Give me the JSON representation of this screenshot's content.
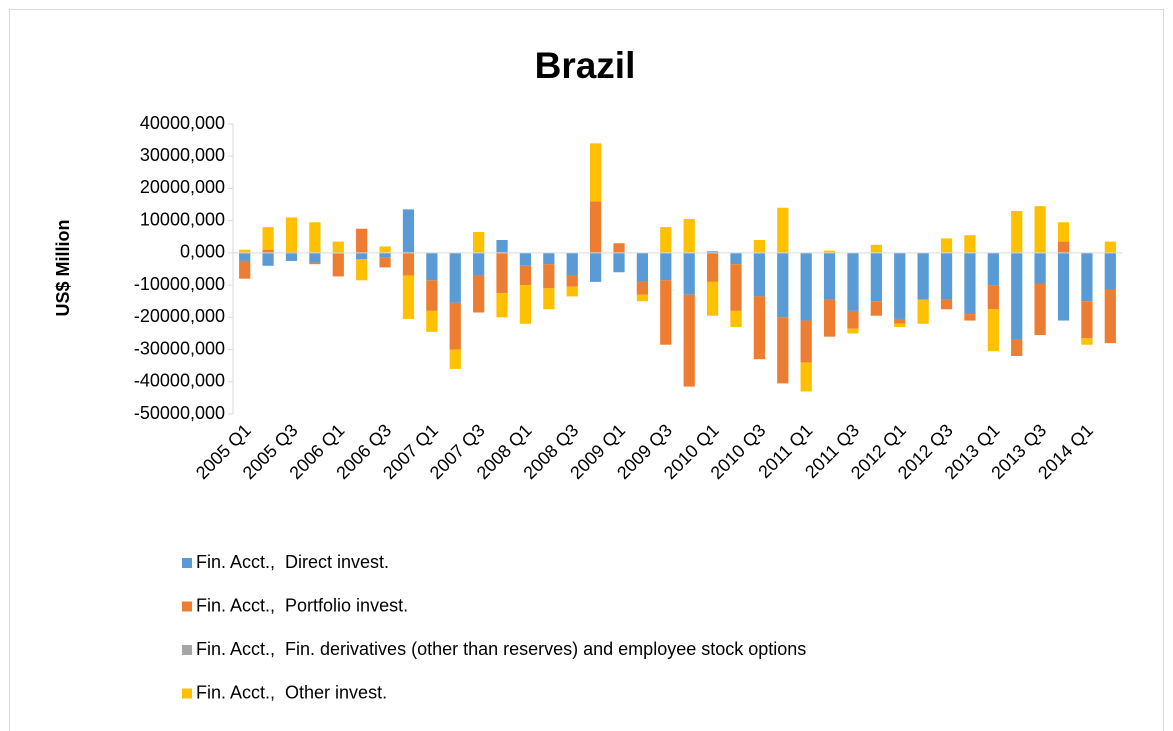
{
  "chart_data": {
    "type": "stacked_bar",
    "title": "Brazil",
    "y_label": "US$ Million",
    "categories": [
      "2005 Q1",
      null,
      "2005 Q3",
      null,
      "2006 Q1",
      null,
      "2006 Q3",
      null,
      "2007 Q1",
      null,
      "2007 Q3",
      null,
      "2008 Q1",
      null,
      "2008 Q3",
      null,
      "2009 Q1",
      null,
      "2009 Q3",
      null,
      "2010 Q1",
      null,
      "2010 Q3",
      null,
      "2011 Q1",
      null,
      "2011 Q3",
      null,
      "2012 Q1",
      null,
      "2012 Q3",
      null,
      "2013 Q1",
      null,
      "2013 Q3",
      null,
      "2014 Q1",
      null
    ],
    "series": [
      {
        "name": "Fin. Acct.,  Direct invest.",
        "color": "#5b9bd5",
        "values": [
          -2500,
          -4000,
          -2500,
          -3000,
          -300,
          -2000,
          -1500,
          13500,
          -8500,
          -15500,
          -7000,
          4000,
          -4000,
          -3500,
          -7000,
          -9000,
          -6000,
          -9000,
          -8500,
          -13000,
          500,
          -3500,
          -13500,
          -20000,
          -21000,
          -14500,
          -18000,
          -15000,
          -20500,
          -14500,
          -14500,
          -19000,
          -10000,
          -27000,
          -9500,
          -21000,
          -15000,
          -11500
        ]
      },
      {
        "name": "Fin. Acct.,  Portfolio invest.",
        "color": "#ed7d31",
        "values": [
          -5500,
          1000,
          300,
          -500,
          -7000,
          7500,
          -3000,
          -7000,
          -9500,
          -14500,
          -11500,
          -12500,
          -6000,
          -7500,
          -3500,
          16000,
          3000,
          -4000,
          -20000,
          -28500,
          -9000,
          -14500,
          -19500,
          -20500,
          -13000,
          -11500,
          -5500,
          -4500,
          -1500,
          0,
          -3000,
          -2000,
          -7500,
          -5000,
          -16000,
          3500,
          -11500,
          -16500
        ]
      },
      {
        "name": "Fin. Acct.,  Fin. derivatives (other than reserves) and employee stock options",
        "color": "#a5a5a5",
        "values": [
          0,
          0,
          0,
          0,
          0,
          0,
          0,
          0,
          0,
          0,
          0,
          0,
          0,
          0,
          0,
          0,
          0,
          0,
          0,
          0,
          0,
          0,
          0,
          0,
          0,
          0,
          0,
          0,
          0,
          0,
          0,
          0,
          0,
          0,
          0,
          0,
          0,
          0
        ]
      },
      {
        "name": "Fin. Acct.,  Other invest.",
        "color": "#ffc000",
        "values": [
          1000,
          7000,
          10700,
          9500,
          3500,
          -6500,
          2000,
          -13500,
          -6500,
          -6000,
          6500,
          -7500,
          -12000,
          -6500,
          -3000,
          18000,
          0,
          -2000,
          8000,
          10500,
          -10500,
          -5000,
          4000,
          14000,
          -9000,
          700,
          -1500,
          2500,
          -1000,
          -7500,
          4500,
          5500,
          -13000,
          13000,
          14500,
          6000,
          -2000,
          3500
        ]
      }
    ],
    "ylim": [
      -50000,
      40000
    ],
    "yticks": [
      {
        "value": -50000,
        "label": "-50000,000"
      },
      {
        "value": -40000,
        "label": "-40000,000"
      },
      {
        "value": -30000,
        "label": "-30000,000"
      },
      {
        "value": -20000,
        "label": "-20000,000"
      },
      {
        "value": -10000,
        "label": "-10000,000"
      },
      {
        "value": 0,
        "label": "0,000"
      },
      {
        "value": 10000,
        "label": "10000,000"
      },
      {
        "value": 20000,
        "label": "20000,000"
      },
      {
        "value": 30000,
        "label": "30000,000"
      },
      {
        "value": 40000,
        "label": "40000,000"
      }
    ],
    "grid": false,
    "legend": "bottom"
  }
}
